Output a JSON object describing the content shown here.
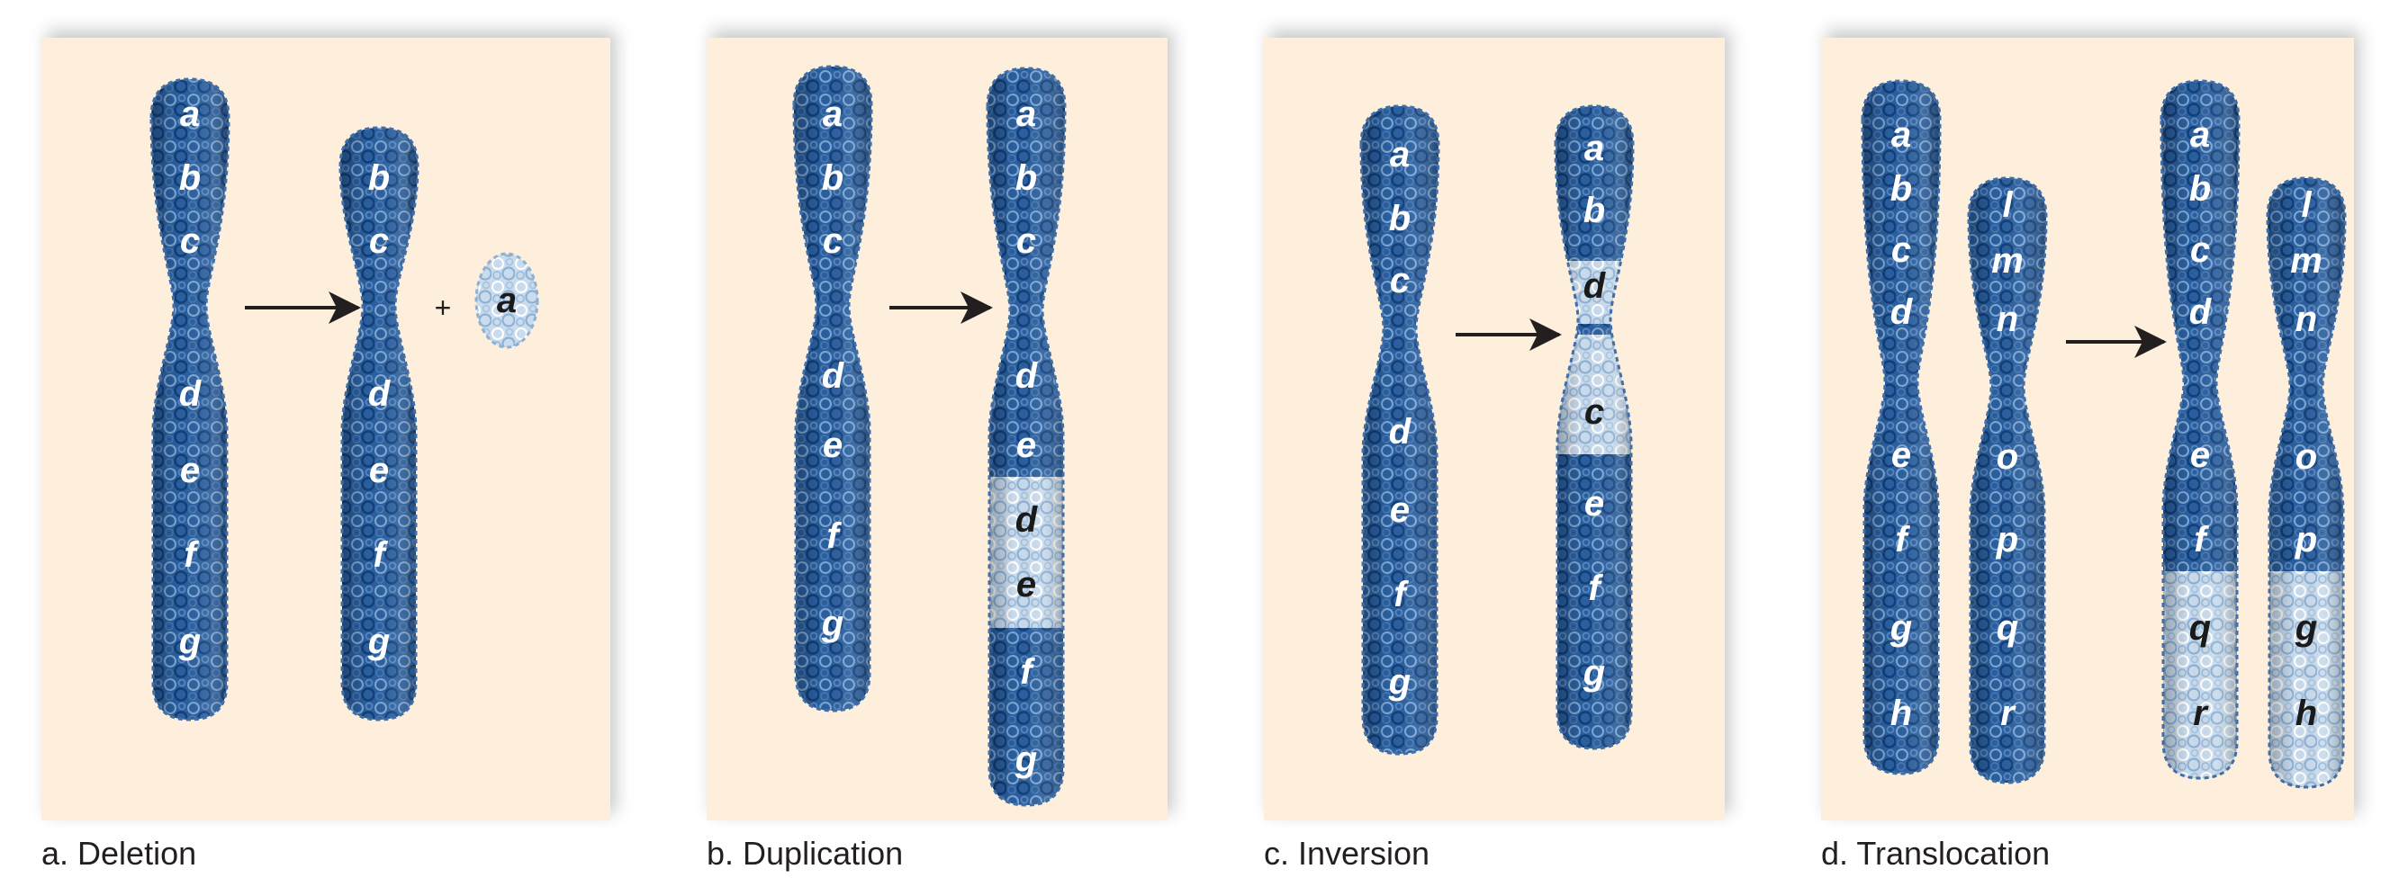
{
  "panels": [
    {
      "caption": "a. Deletion",
      "chromosomes": [
        {
          "genes": [
            "a",
            "b",
            "c",
            "d",
            "e",
            "f",
            "g"
          ]
        },
        {
          "genes": [
            "b",
            "c",
            "d",
            "e",
            "f",
            "g"
          ]
        }
      ],
      "fragment": {
        "plus": "+",
        "gene": "a"
      }
    },
    {
      "caption": "b. Duplication",
      "chromosomes": [
        {
          "genes": [
            "a",
            "b",
            "c",
            "d",
            "e",
            "f",
            "g"
          ]
        },
        {
          "genes": [
            "a",
            "b",
            "c",
            "d",
            "e",
            "d",
            "e",
            "f",
            "g"
          ],
          "highlighted": [
            "d",
            "e"
          ]
        }
      ]
    },
    {
      "caption": "c. Inversion",
      "chromosomes": [
        {
          "genes": [
            "a",
            "b",
            "c",
            "d",
            "e",
            "f",
            "g"
          ]
        },
        {
          "genes": [
            "a",
            "b",
            "d",
            "c",
            "e",
            "f",
            "g"
          ],
          "highlighted": [
            "d",
            "c"
          ]
        }
      ]
    },
    {
      "caption": "d. Translocation",
      "chromosomes": [
        {
          "genes": [
            "a",
            "b",
            "c",
            "d",
            "e",
            "f",
            "g",
            "h"
          ]
        },
        {
          "genes": [
            "l",
            "m",
            "n",
            "o",
            "p",
            "q",
            "r"
          ]
        },
        {
          "genes": [
            "a",
            "b",
            "c",
            "d",
            "e",
            "f",
            "q",
            "r"
          ],
          "highlighted": [
            "q",
            "r"
          ]
        },
        {
          "genes": [
            "l",
            "m",
            "n",
            "o",
            "p",
            "g",
            "h"
          ],
          "highlighted": [
            "g",
            "h"
          ]
        }
      ]
    }
  ],
  "colors": {
    "panel_bg": "#fdefdc",
    "chromatin_dark": "#1f4f8f",
    "chromatin_light": "#c9dced",
    "arrow": "#231f20",
    "label_light": "#ffffff",
    "label_dark": "#1a1a1a"
  }
}
